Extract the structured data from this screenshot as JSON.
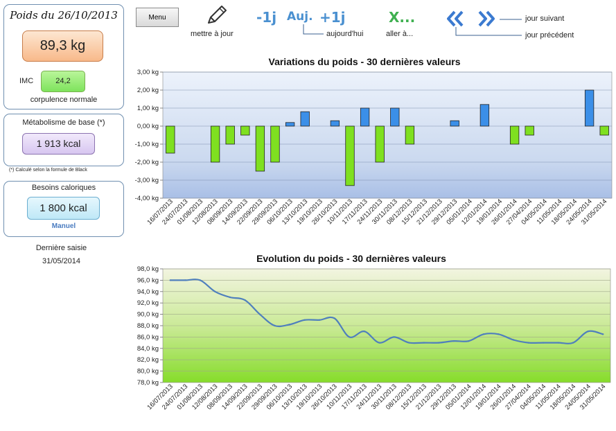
{
  "sidebar": {
    "weight_title": "Poids du 26/10/2013",
    "weight_value": "89,3 kg",
    "imc_label": "IMC",
    "imc_value": "24,2",
    "imc_desc": "corpulence normale",
    "metabolism_label": "Métabolisme de base (*)",
    "metabolism_value": "1 913 kcal",
    "metabolism_note": "(*) Calculé selon la formule de Black",
    "needs_label": "Besoins caloriques",
    "needs_value": "1 800 kcal",
    "needs_mode": "Manuel",
    "last_entry_label": "Dernière saisie",
    "last_entry_date": "31/05/2014"
  },
  "toolbar": {
    "menu_label": "Menu",
    "update_label": "mettre  à jour",
    "minus_day": "-1j",
    "today_btn": "Auj.",
    "plus_day": "+1j",
    "today_label": "aujourd'hui",
    "goto_btn": "X...",
    "goto_label": "aller à...",
    "prev_glyph": "«",
    "next_glyph": "»",
    "next_day_label": "jour suivant",
    "prev_day_label": "jour précédent"
  },
  "colors": {
    "panel_border": "#6f8fb0",
    "bar_positive": "#3b8fe8",
    "bar_negative": "#7fe020",
    "line": "#4f7fbd"
  },
  "chart_data": [
    {
      "type": "bar",
      "title": "Variations du poids - 30 dernières valeurs",
      "ylim": [
        -4,
        3
      ],
      "yticks": [
        "3,00 kg",
        "2,00 kg",
        "1,00 kg",
        "0,00 kg",
        "-1,00 kg",
        "-2,00 kg",
        "-3,00 kg",
        "-4,00 kg"
      ],
      "categories": [
        "16/07/2013",
        "24/07/2013",
        "01/08/2013",
        "12/08/2013",
        "08/09/2013",
        "14/09/2013",
        "22/09/2013",
        "29/09/2013",
        "06/10/2013",
        "13/10/2013",
        "19/10/2013",
        "26/10/2013",
        "10/11/2013",
        "17/11/2013",
        "24/11/2013",
        "30/11/2013",
        "08/12/2013",
        "15/12/2013",
        "21/12/2013",
        "29/12/2013",
        "05/01/2014",
        "12/01/2014",
        "19/01/2014",
        "26/01/2014",
        "27/04/2014",
        "04/05/2014",
        "11/05/2014",
        "18/05/2014",
        "24/05/2014",
        "31/05/2014"
      ],
      "values": [
        -1.5,
        0,
        0,
        -2.0,
        -1.0,
        -0.5,
        -2.5,
        -2.0,
        0.2,
        0.8,
        0,
        0.3,
        -3.3,
        1.0,
        -2.0,
        1.0,
        -1.0,
        0,
        0,
        0.3,
        0,
        1.2,
        0,
        -1.0,
        -0.5,
        0,
        0,
        0,
        2.0,
        -0.5
      ]
    },
    {
      "type": "line",
      "title": "Evolution du poids - 30 dernières valeurs",
      "ylim": [
        78,
        98
      ],
      "yticks": [
        "98,0 kg",
        "96,0 kg",
        "94,0 kg",
        "92,0 kg",
        "90,0 kg",
        "88,0 kg",
        "86,0 kg",
        "84,0 kg",
        "82,0 kg",
        "80,0 kg",
        "78,0 kg"
      ],
      "categories": [
        "16/07/2013",
        "24/07/2013",
        "01/08/2013",
        "12/08/2013",
        "08/09/2013",
        "14/09/2013",
        "22/09/2013",
        "29/09/2013",
        "06/10/2013",
        "13/10/2013",
        "19/10/2013",
        "26/10/2013",
        "10/11/2013",
        "17/11/2013",
        "24/11/2013",
        "30/11/2013",
        "08/12/2013",
        "15/12/2013",
        "21/12/2013",
        "29/12/2013",
        "05/01/2014",
        "12/01/2014",
        "19/01/2014",
        "26/01/2014",
        "27/04/2014",
        "04/05/2014",
        "11/05/2014",
        "18/05/2014",
        "24/05/2014",
        "31/05/2014"
      ],
      "values": [
        96.0,
        96.0,
        96.0,
        94.0,
        93.0,
        92.5,
        90.0,
        88.0,
        88.2,
        89.0,
        89.0,
        89.3,
        86.0,
        87.0,
        85.0,
        86.0,
        85.0,
        85.0,
        85.0,
        85.3,
        85.3,
        86.5,
        86.5,
        85.5,
        85.0,
        85.0,
        85.0,
        85.0,
        87.0,
        86.5
      ]
    }
  ]
}
